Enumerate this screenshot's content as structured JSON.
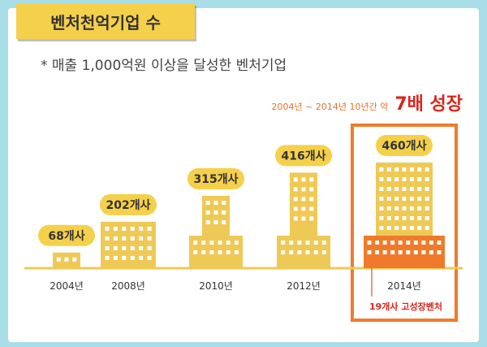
{
  "header": {
    "title": "벤처천억기업 수"
  },
  "subtitle": "* 매출 1,000억원 이상을 달성한 벤처기업",
  "growth": {
    "period": "2004년 ~ 2014년 10년간 약",
    "multiplier": "7배 성장"
  },
  "note": "19개사 고성장벤처",
  "colors": {
    "background": "#a9dde8",
    "building": "#eec955",
    "highlight": "#f07a2a",
    "label_pill": "#f5d04b",
    "accent_red": "#d9261c"
  },
  "chart_data": {
    "type": "bar",
    "categories": [
      "2004년",
      "2008년",
      "2010년",
      "2012년",
      "2014년"
    ],
    "values": [
      68,
      202,
      315,
      416,
      460
    ],
    "value_labels": [
      "68개사",
      "202개사",
      "315개사",
      "416개사",
      "460개사"
    ],
    "highlight_segment": {
      "category": "2014년",
      "value": 19,
      "label": "19개사 고성장벤처"
    },
    "title": "벤처천억기업 수",
    "xlabel": "",
    "ylabel": ""
  }
}
